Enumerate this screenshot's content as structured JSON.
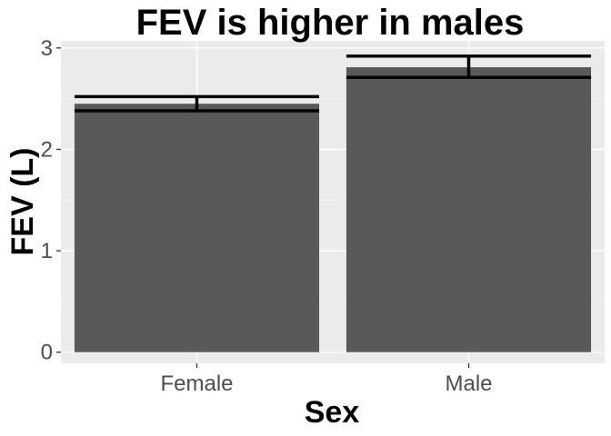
{
  "chart_data": {
    "type": "bar",
    "title": "FEV is higher in males",
    "xlabel": "Sex",
    "ylabel": "FEV (L)",
    "categories": [
      "Female",
      "Male"
    ],
    "values": [
      2.45,
      2.81
    ],
    "error_bars": [
      {
        "lower": 2.38,
        "upper": 2.52
      },
      {
        "lower": 2.71,
        "upper": 2.92
      }
    ],
    "mean_lines": [
      2.45,
      2.81
    ],
    "ylim": [
      -0.11,
      3.07
    ],
    "yticks": [
      0,
      1,
      2,
      3
    ],
    "ytick_labels": [
      "0",
      "1",
      "2",
      "3"
    ],
    "grid": true,
    "colors": {
      "panel_background": "#ebebeb",
      "grid_major": "#ffffff",
      "grid_minor": "#f5f5f5",
      "bar_fill": "#595959",
      "error_bar": "#000000",
      "tick_text": "#4d4d4d"
    }
  }
}
